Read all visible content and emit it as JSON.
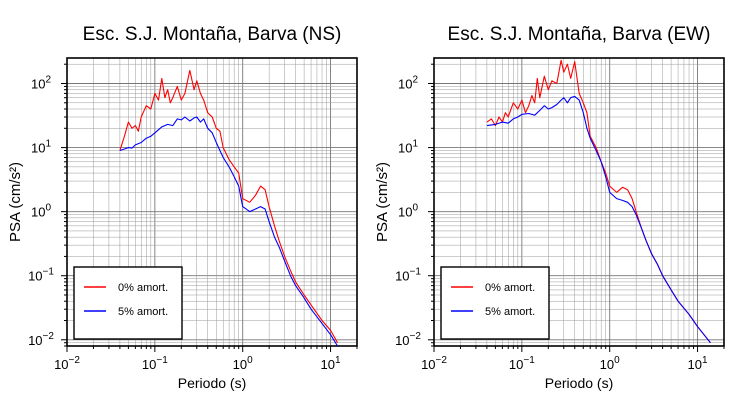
{
  "chart_data": [
    {
      "type": "line",
      "title": "Esc. S.J. Montaña, Barva (NS)",
      "xlabel": "Periodo (s)",
      "ylabel": "PSA (cm/s²)",
      "xscale": "log",
      "yscale": "log",
      "xlim": [
        0.01,
        20
      ],
      "ylim": [
        0.008,
        250
      ],
      "grid": true,
      "legend": "bottom-left",
      "x_ticks": [
        {
          "base": "10",
          "exp": "−2"
        },
        {
          "base": "10",
          "exp": "−1"
        },
        {
          "base": "10",
          "exp": "0"
        },
        {
          "base": "10",
          "exp": "1"
        }
      ],
      "y_ticks": [
        {
          "base": "10",
          "exp": "−2"
        },
        {
          "base": "10",
          "exp": "−1"
        },
        {
          "base": "10",
          "exp": "0"
        },
        {
          "base": "10",
          "exp": "1"
        },
        {
          "base": "10",
          "exp": "2"
        }
      ],
      "series": [
        {
          "name": "0% amort.",
          "color": "#ff0000",
          "x": [
            0.04,
            0.045,
            0.05,
            0.055,
            0.06,
            0.065,
            0.07,
            0.08,
            0.09,
            0.1,
            0.11,
            0.12,
            0.13,
            0.14,
            0.15,
            0.16,
            0.18,
            0.2,
            0.22,
            0.25,
            0.28,
            0.3,
            0.33,
            0.36,
            0.4,
            0.45,
            0.5,
            0.55,
            0.6,
            0.7,
            0.8,
            0.9,
            1.0,
            1.2,
            1.4,
            1.6,
            1.8,
            2.0,
            2.3,
            2.6,
            3.0,
            3.5,
            4.0,
            5.0,
            6.0,
            8.0,
            10.0,
            12.0
          ],
          "y": [
            9,
            15,
            25,
            20,
            22,
            18,
            30,
            45,
            40,
            70,
            55,
            120,
            60,
            80,
            50,
            60,
            90,
            55,
            70,
            160,
            80,
            110,
            70,
            55,
            35,
            30,
            20,
            18,
            10,
            6.5,
            5,
            4,
            1.6,
            1.4,
            1.8,
            2.5,
            2.2,
            1.2,
            0.6,
            0.35,
            0.2,
            0.12,
            0.08,
            0.05,
            0.035,
            0.02,
            0.014,
            0.009
          ]
        },
        {
          "name": "5% amort.",
          "color": "#0000ff",
          "x": [
            0.04,
            0.045,
            0.05,
            0.055,
            0.06,
            0.07,
            0.08,
            0.09,
            0.1,
            0.12,
            0.14,
            0.16,
            0.18,
            0.2,
            0.22,
            0.25,
            0.28,
            0.3,
            0.33,
            0.36,
            0.4,
            0.45,
            0.5,
            0.55,
            0.6,
            0.7,
            0.8,
            0.9,
            1.0,
            1.2,
            1.4,
            1.6,
            1.8,
            2.0,
            2.3,
            2.6,
            3.0,
            3.5,
            4.0,
            5.0,
            6.0,
            8.0,
            10.0,
            12.0
          ],
          "y": [
            9,
            9.5,
            10,
            9.8,
            11,
            12,
            14,
            15,
            17,
            21,
            23,
            22,
            28,
            27,
            30,
            26,
            29,
            30,
            25,
            28,
            20,
            17,
            12,
            9,
            7,
            5,
            3.5,
            2.5,
            1.2,
            1.0,
            1.1,
            1.2,
            1.1,
            0.7,
            0.4,
            0.28,
            0.17,
            0.1,
            0.07,
            0.045,
            0.03,
            0.018,
            0.012,
            0.008
          ]
        }
      ]
    },
    {
      "type": "line",
      "title": "Esc. S.J. Montaña, Barva (EW)",
      "xlabel": "Periodo (s)",
      "ylabel": "PSA (cm/s²)",
      "xscale": "log",
      "yscale": "log",
      "xlim": [
        0.01,
        20
      ],
      "ylim": [
        0.008,
        250
      ],
      "grid": true,
      "legend": "bottom-left",
      "x_ticks": [
        {
          "base": "10",
          "exp": "−2"
        },
        {
          "base": "10",
          "exp": "−1"
        },
        {
          "base": "10",
          "exp": "0"
        },
        {
          "base": "10",
          "exp": "1"
        }
      ],
      "y_ticks": [
        {
          "base": "10",
          "exp": "−2"
        },
        {
          "base": "10",
          "exp": "−1"
        },
        {
          "base": "10",
          "exp": "0"
        },
        {
          "base": "10",
          "exp": "1"
        },
        {
          "base": "10",
          "exp": "2"
        }
      ],
      "series": [
        {
          "name": "0% amort.",
          "color": "#ff0000",
          "x": [
            0.04,
            0.045,
            0.05,
            0.055,
            0.06,
            0.065,
            0.07,
            0.08,
            0.09,
            0.1,
            0.11,
            0.12,
            0.13,
            0.14,
            0.15,
            0.16,
            0.18,
            0.2,
            0.22,
            0.25,
            0.28,
            0.3,
            0.33,
            0.36,
            0.4,
            0.45,
            0.5,
            0.55,
            0.6,
            0.7,
            0.8,
            0.9,
            1.0,
            1.2,
            1.4,
            1.6,
            1.8,
            2.0,
            2.3,
            2.6,
            3.0,
            3.5,
            4.0,
            5.0,
            6.0,
            8.0,
            10.0,
            14.0
          ],
          "y": [
            25,
            28,
            22,
            30,
            25,
            35,
            30,
            50,
            40,
            55,
            35,
            45,
            65,
            50,
            120,
            60,
            130,
            80,
            110,
            100,
            230,
            150,
            200,
            120,
            220,
            70,
            50,
            35,
            15,
            10,
            6,
            4,
            2.5,
            2.0,
            2.4,
            2.2,
            1.6,
            1.0,
            0.55,
            0.35,
            0.22,
            0.15,
            0.1,
            0.06,
            0.04,
            0.025,
            0.016,
            0.009
          ]
        },
        {
          "name": "5% amort.",
          "color": "#0000ff",
          "x": [
            0.04,
            0.05,
            0.06,
            0.07,
            0.08,
            0.09,
            0.1,
            0.12,
            0.14,
            0.16,
            0.18,
            0.2,
            0.22,
            0.25,
            0.28,
            0.3,
            0.33,
            0.36,
            0.4,
            0.45,
            0.5,
            0.55,
            0.6,
            0.7,
            0.8,
            0.9,
            1.0,
            1.2,
            1.4,
            1.6,
            1.8,
            2.0,
            2.3,
            2.6,
            3.0,
            3.5,
            4.0,
            5.0,
            6.0,
            8.0,
            10.0,
            14.0
          ],
          "y": [
            22,
            23,
            25,
            24,
            28,
            30,
            33,
            34,
            32,
            38,
            45,
            40,
            42,
            47,
            55,
            60,
            50,
            60,
            63,
            55,
            35,
            20,
            14,
            9,
            6,
            3.5,
            2.0,
            1.6,
            1.5,
            1.4,
            1.2,
            0.9,
            0.55,
            0.35,
            0.22,
            0.15,
            0.1,
            0.06,
            0.04,
            0.025,
            0.016,
            0.009
          ]
        }
      ]
    }
  ]
}
